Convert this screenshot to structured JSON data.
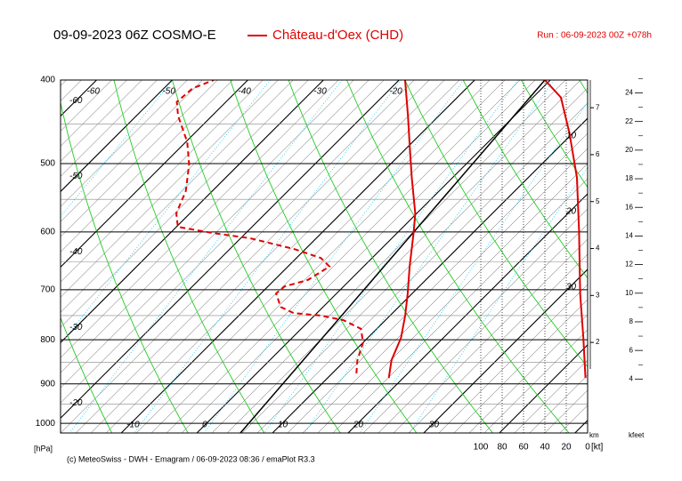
{
  "header": {
    "title": "09-09-2023 06Z COSMO-E",
    "station": "Château-d'Oex (CHD)",
    "run": "Run : 06-09-2023 00Z +078h"
  },
  "footer": "(c) MeteoSwiss - DWH - Emagram / 06-09-2023 08:36 / emaPlot R3.3",
  "chart_data": {
    "type": "emagram",
    "y_label": "[hPa]",
    "log_y": true,
    "ylim": [
      1026,
      400
    ],
    "yticks": [
      400,
      500,
      600,
      700,
      800,
      900,
      1000
    ],
    "minor_yticks": [
      450,
      550,
      650,
      750,
      850,
      950
    ],
    "xlim": [
      -19.3,
      50.4
    ],
    "isotherm_labels": {
      "top": [
        -60,
        -50,
        -40,
        -30,
        -20
      ],
      "left": [
        -60,
        -50,
        -40,
        -30,
        -20
      ],
      "bottom": [
        -10,
        0,
        10,
        20,
        30
      ],
      "right": [
        10,
        20,
        30
      ]
    },
    "temperature": {
      "color": "#e00000",
      "p": [
        886,
        845,
        796,
        750,
        707,
        658,
        602,
        571,
        519,
        483,
        440,
        400
      ],
      "t": [
        18.1,
        16.1,
        14.4,
        12.0,
        9.4,
        6.1,
        2.2,
        -0.2,
        -5.4,
        -9.2,
        -14.1,
        -19.2
      ]
    },
    "dewpoint": {
      "color": "#e00000",
      "dashed": true,
      "p": [
        875,
        845,
        806,
        777,
        759,
        750,
        745,
        733,
        707,
        694,
        682,
        658,
        643,
        628,
        610,
        602,
        592,
        571,
        538,
        501,
        472,
        440,
        424,
        409,
        400
      ],
      "t": [
        13.2,
        11.6,
        10.0,
        7.9,
        4.4,
        0.8,
        -3.1,
        -5.6,
        -8.0,
        -7.8,
        -5.6,
        -4.5,
        -6.8,
        -11.5,
        -18.8,
        -24.2,
        -29.8,
        -31.8,
        -33.5,
        -36.6,
        -39.8,
        -44.5,
        -46.5,
        -46.2,
        -44.5
      ]
    },
    "wind_speed": {
      "color": "#e00000",
      "p": [
        886,
        796,
        707,
        599,
        519,
        461,
        419,
        400
      ],
      "values": [
        2,
        4,
        7,
        8,
        10,
        17,
        25,
        40
      ]
    },
    "wind_lim": [
      100,
      0
    ],
    "wind_ticks": [
      100,
      80,
      60,
      40,
      20,
      0
    ],
    "wind_unit": "[kt]",
    "km_label": "km",
    "km_lim": [
      0.07,
      7.59
    ],
    "km_ticks": [
      2,
      3,
      4,
      5,
      6,
      7
    ],
    "kfeet_label": "kfeet",
    "kfeet_lim": [
      0.23,
      24.9
    ],
    "kfeet_ticks": [
      4,
      6,
      8,
      10,
      12,
      14,
      16,
      18,
      20,
      22,
      24
    ]
  }
}
